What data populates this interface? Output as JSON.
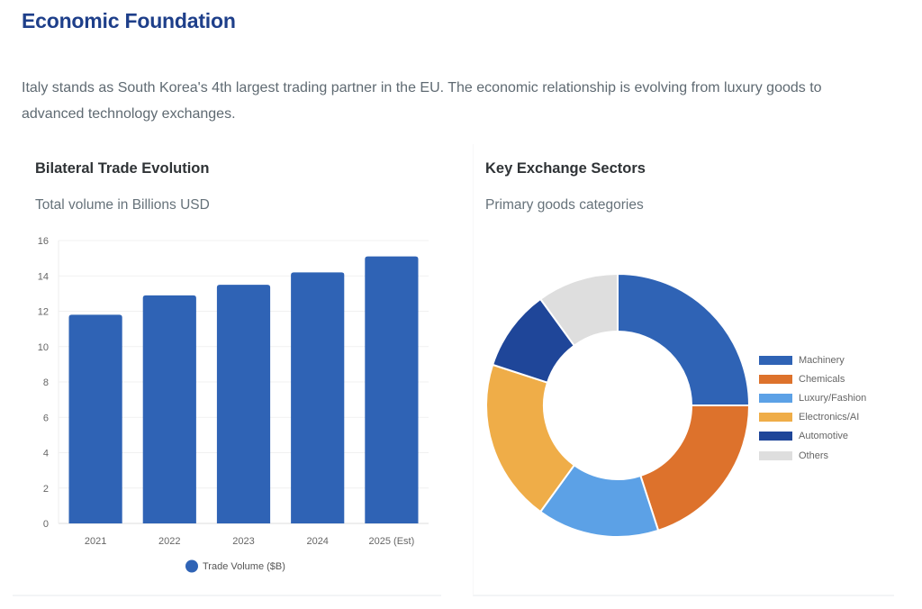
{
  "header": {
    "title": "Economic Foundation",
    "intro": "Italy stands as South Korea's 4th largest trading partner in the EU. The economic relationship is evolving from luxury goods to advanced technology exchanges."
  },
  "cards": [
    {
      "title": "Bilateral Trade Evolution",
      "subtitle": "Total volume in Billions USD"
    },
    {
      "title": "Key Exchange Sectors",
      "subtitle": "Primary goods categories"
    }
  ],
  "colors": {
    "title": "#1e3f8a",
    "bar": "#2f63b5",
    "machinery": "#2f63b5",
    "chemicals": "#dd722c",
    "luxury": "#5ca1e6",
    "electronics": "#efad48",
    "automotive": "#1f4699",
    "others": "#dedede"
  },
  "chart_data": [
    {
      "type": "bar",
      "title": "Bilateral Trade Evolution",
      "subtitle": "Total volume in Billions USD",
      "categories": [
        "2021",
        "2022",
        "2023",
        "2024",
        "2025 (Est)"
      ],
      "series": [
        {
          "name": "Trade Volume ($B)",
          "values": [
            11.8,
            12.9,
            13.5,
            14.2,
            15.1
          ],
          "color": "#2f63b5"
        }
      ],
      "xlabel": "",
      "ylabel": "",
      "ylim": [
        0,
        16
      ],
      "yticks": [
        0,
        2,
        4,
        6,
        8,
        10,
        12,
        14,
        16
      ],
      "grid": true,
      "legend_position": "bottom"
    },
    {
      "type": "pie",
      "donut": true,
      "title": "Key Exchange Sectors",
      "subtitle": "Primary goods categories",
      "categories": [
        "Machinery",
        "Chemicals",
        "Luxury/Fashion",
        "Electronics/AI",
        "Automotive",
        "Others"
      ],
      "values": [
        25,
        20,
        15,
        20,
        10,
        10
      ],
      "colors": [
        "#2f63b5",
        "#dd722c",
        "#5ca1e6",
        "#efad48",
        "#1f4699",
        "#dedede"
      ],
      "legend_position": "right"
    }
  ]
}
